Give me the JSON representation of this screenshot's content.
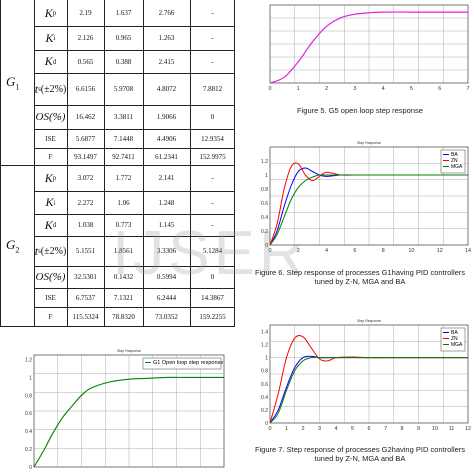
{
  "table": {
    "groups": [
      {
        "label_main": "G",
        "label_sub": "1",
        "rows": [
          {
            "param": "K",
            "param_sub": "p",
            "values": [
              "2.19",
              "1.637",
              "2.766",
              "-"
            ]
          },
          {
            "param": "K",
            "param_sub": "i",
            "values": [
              "2.126",
              "0.965",
              "1.263",
              "-"
            ]
          },
          {
            "param": "K",
            "param_sub": "d",
            "values": [
              "0.565",
              "0.388",
              "2.415",
              "-"
            ]
          },
          {
            "param": "t",
            "param_sub": "s",
            "param_suffix": "(±2%)",
            "values": [
              "6.6156",
              "5.9708",
              "4.8072",
              "7.8812"
            ]
          },
          {
            "param": "OS(%)",
            "param_sub": "",
            "values": [
              "16.462",
              "3.3811",
              "1.9066",
              "0"
            ]
          },
          {
            "param": "ISE",
            "param_sub": "",
            "values": [
              "5.6877",
              "7.1448",
              "4.4906",
              "12.9354"
            ]
          },
          {
            "param": "F",
            "param_sub": "",
            "values": [
              "93.1497",
              "92.7411",
              "61.2341",
              "152.9975"
            ]
          }
        ]
      },
      {
        "label_main": "G",
        "label_sub": "2",
        "rows": [
          {
            "param": "K",
            "param_sub": "p",
            "values": [
              "3.072",
              "1.772",
              "2.141",
              "-"
            ]
          },
          {
            "param": "K",
            "param_sub": "i",
            "values": [
              "2.272",
              "1.06",
              "1.248",
              "-"
            ]
          },
          {
            "param": "K",
            "param_sub": "d",
            "values": [
              "1.038",
              "0.773",
              "1.145",
              "-"
            ]
          },
          {
            "param": "t",
            "param_sub": "s",
            "param_suffix": "(±2%)",
            "values": [
              "5.1551",
              "1.8561",
              "3.3306",
              "5.1284"
            ]
          },
          {
            "param": "OS(%)",
            "param_sub": "",
            "values": [
              "32.5301",
              "0.1432",
              "0.5994",
              "0"
            ]
          },
          {
            "param": "ISE",
            "param_sub": "",
            "values": [
              "6.7537",
              "7.1321",
              "6.2444",
              "14.3867"
            ]
          },
          {
            "param": "F",
            "param_sub": "",
            "values": [
              "115.5324",
              "78.8320",
              "73.0352",
              "159.2255"
            ]
          }
        ]
      }
    ]
  },
  "watermark": "IJSER",
  "chart_data": [
    {
      "type": "line",
      "title": "",
      "caption": "Figure 5. G5 open loop step response",
      "x": [
        0,
        0.5,
        1,
        1.5,
        2,
        2.5,
        3,
        3.5,
        4,
        5,
        6,
        7
      ],
      "series": [
        {
          "values": [
            0.0,
            0.08,
            0.3,
            0.58,
            0.8,
            0.92,
            0.97,
            0.99,
            1.0,
            1.0,
            1.0,
            1.0
          ],
          "color": "#e81de0"
        }
      ],
      "xticks": [
        "0",
        "1",
        "2",
        "3",
        "4",
        "5",
        "6",
        "7"
      ],
      "xlim": [
        0,
        7
      ],
      "ylim": [
        0,
        1.1
      ],
      "grid": true
    },
    {
      "type": "line",
      "title": "Step Response",
      "caption": "Figure 6. Step response of processes G1having PID controllers tuned by Z-N, MGA and BA",
      "x": [
        0,
        0.5,
        1,
        1.5,
        2,
        2.5,
        3,
        3.5,
        4,
        5,
        6,
        7,
        8,
        10,
        12,
        14
      ],
      "series": [
        {
          "name": "BA",
          "color": "#0000ff",
          "values": [
            0,
            0.2,
            0.55,
            0.85,
            1.05,
            1.1,
            1.05,
            1.0,
            0.98,
            1.0,
            1.0,
            1.0,
            1.0,
            1.0,
            1.0,
            1.0
          ]
        },
        {
          "name": "ZN",
          "color": "#ff0000",
          "values": [
            0,
            0.3,
            0.8,
            1.12,
            1.16,
            1.0,
            0.92,
            0.98,
            1.04,
            1.0,
            1.0,
            1.0,
            1.0,
            1.0,
            1.0,
            1.0
          ]
        },
        {
          "name": "MGA",
          "color": "#008000",
          "values": [
            0,
            0.15,
            0.4,
            0.65,
            0.82,
            0.92,
            0.97,
            1.0,
            1.0,
            1.0,
            1.0,
            1.0,
            1.0,
            1.0,
            1.0,
            1.0
          ]
        }
      ],
      "xticks": [
        "0",
        "2",
        "4",
        "6",
        "8",
        "10",
        "12",
        "14"
      ],
      "yticks": [
        "0",
        "0.2",
        "0.4",
        "0.6",
        "0.8",
        "1",
        "1.2"
      ],
      "xlim": [
        0,
        14
      ],
      "ylim": [
        0,
        1.4
      ],
      "grid": true,
      "legend": "top-right"
    },
    {
      "type": "line",
      "title": "Step Response",
      "caption": "Figure 7. Step response of processes G2having PID controllers tuned by Z-N, MGA and BA",
      "x": [
        0,
        0.5,
        1,
        1.5,
        2,
        2.5,
        3,
        3.5,
        4,
        5,
        6,
        7,
        8,
        9,
        10,
        12
      ],
      "series": [
        {
          "name": "BA",
          "color": "#0000ff",
          "values": [
            0,
            0.2,
            0.55,
            0.85,
            1.0,
            1.02,
            1.0,
            1.0,
            1.0,
            1.0,
            1.0,
            1.0,
            1.0,
            1.0,
            1.0,
            1.0
          ]
        },
        {
          "name": "ZN",
          "color": "#ff0000",
          "values": [
            0,
            0.45,
            1.0,
            1.3,
            1.32,
            1.15,
            0.98,
            0.95,
            1.0,
            1.01,
            1.0,
            1.0,
            1.0,
            1.0,
            1.0,
            1.0
          ]
        },
        {
          "name": "MGA",
          "color": "#008000",
          "values": [
            0,
            0.15,
            0.5,
            0.8,
            0.95,
            1.0,
            1.0,
            1.0,
            1.0,
            1.0,
            1.0,
            1.0,
            1.0,
            1.0,
            1.0,
            1.0
          ]
        }
      ],
      "xticks": [
        "0",
        "1",
        "2",
        "3",
        "4",
        "5",
        "6",
        "7",
        "8",
        "9",
        "10",
        "11",
        "12"
      ],
      "yticks": [
        "0",
        "0.2",
        "0.4",
        "0.6",
        "0.8",
        "1",
        "1.2",
        "1.4"
      ],
      "xlim": [
        0,
        12
      ],
      "ylim": [
        0,
        1.5
      ],
      "grid": true,
      "legend": "top-right"
    },
    {
      "type": "line",
      "title": "Step Response",
      "caption": "",
      "x": [
        0,
        1,
        2,
        3,
        4,
        5,
        6,
        8,
        10,
        12,
        14,
        16,
        18,
        20
      ],
      "series": [
        {
          "name": "G1 Open loop step response",
          "color": "#008000",
          "values": [
            0,
            0.18,
            0.38,
            0.55,
            0.68,
            0.8,
            0.88,
            0.95,
            0.98,
            0.99,
            1.0,
            1.0,
            1.0,
            1.0
          ]
        }
      ],
      "yticks": [
        "0",
        "0.2",
        "0.4",
        "0.6",
        "0.8",
        "1",
        "1.2"
      ],
      "xlim": [
        0,
        20
      ],
      "ylim": [
        0,
        1.25
      ],
      "grid": true,
      "legend": "top-right"
    }
  ]
}
